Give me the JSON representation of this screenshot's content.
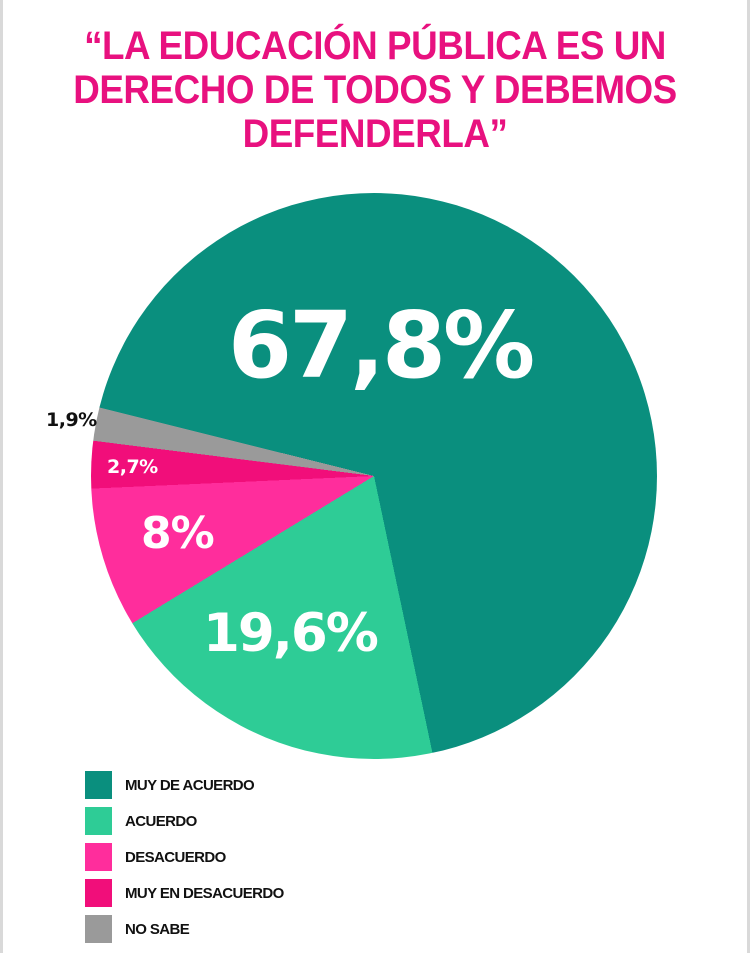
{
  "title": {
    "lines": [
      "“LA EDUCACIÓN PÚBLICA ES UN",
      "DERECHO DE TODOS Y DEBEMOS",
      "DEFENDERLA”"
    ],
    "color": "#E8117F"
  },
  "chart_data": {
    "type": "pie",
    "title": "“LA EDUCACIÓN PÚBLICA ES UN DERECHO DE TODOS Y DEBEMOS DEFENDERLA”",
    "start_angle_deg_clockwise_from_top": 284,
    "direction": "clockwise",
    "slices": [
      {
        "name": "MUY DE ACUERDO",
        "value": 67.8,
        "label": "67,8%",
        "color": "#0A8F7E"
      },
      {
        "name": "ACUERDO",
        "value": 19.6,
        "label": "19,6%",
        "color": "#2ECC96"
      },
      {
        "name": "DESACUERDO",
        "value": 8.0,
        "label": "8%",
        "color": "#FF2D9C"
      },
      {
        "name": "MUY EN DESACUERDO",
        "value": 2.7,
        "label": "2,7%",
        "color": "#F10E7A"
      },
      {
        "name": "NO SABE",
        "value": 1.9,
        "label": "1,9%",
        "color": "#9A9A9A"
      }
    ],
    "legend_position": "bottom-left"
  },
  "labels": {
    "muy_de_acuerdo": "67,8%",
    "acuerdo": "19,6%",
    "desacuerdo": "8%",
    "muy_en_desacuerdo": "2,7%",
    "no_sabe": "1,9%"
  },
  "legend": {
    "items": [
      {
        "label": "MUY DE ACUERDO",
        "color": "#0A8F7E"
      },
      {
        "label": "ACUERDO",
        "color": "#2ECC96"
      },
      {
        "label": "DESACUERDO",
        "color": "#FF2D9C"
      },
      {
        "label": "MUY EN DESACUERDO",
        "color": "#F10E7A"
      },
      {
        "label": "NO SABE",
        "color": "#9A9A9A"
      }
    ]
  }
}
